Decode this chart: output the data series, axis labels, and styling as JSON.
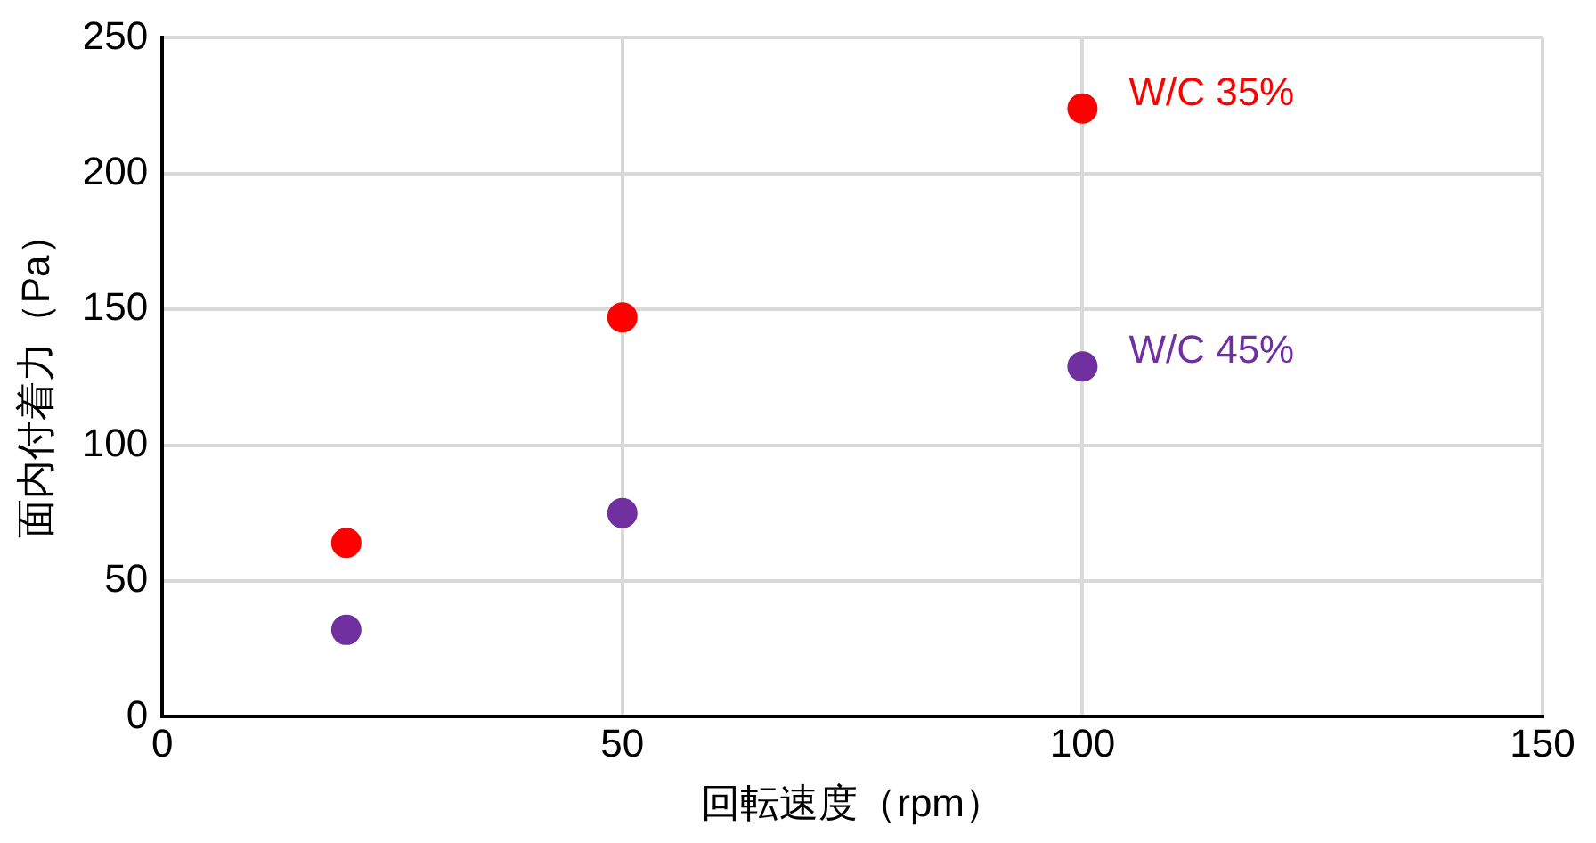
{
  "chart_data": {
    "type": "scatter",
    "xlabel": "回転速度（rpm）",
    "ylabel": "面内付着力（Pa）",
    "x": [
      20,
      50,
      100
    ],
    "series": [
      {
        "name": "W/C 35%",
        "color": "#ff0000",
        "values": [
          64,
          147,
          224
        ]
      },
      {
        "name": "W/C 45%",
        "color": "#7030a0",
        "values": [
          32,
          75,
          129
        ]
      }
    ],
    "xlim": [
      0,
      150
    ],
    "xticks": [
      0,
      50,
      100,
      150
    ],
    "ylim": [
      0,
      250
    ],
    "yticks": [
      0,
      50,
      100,
      150,
      200,
      250
    ],
    "grid": true,
    "legend": false,
    "marker": "circle"
  }
}
